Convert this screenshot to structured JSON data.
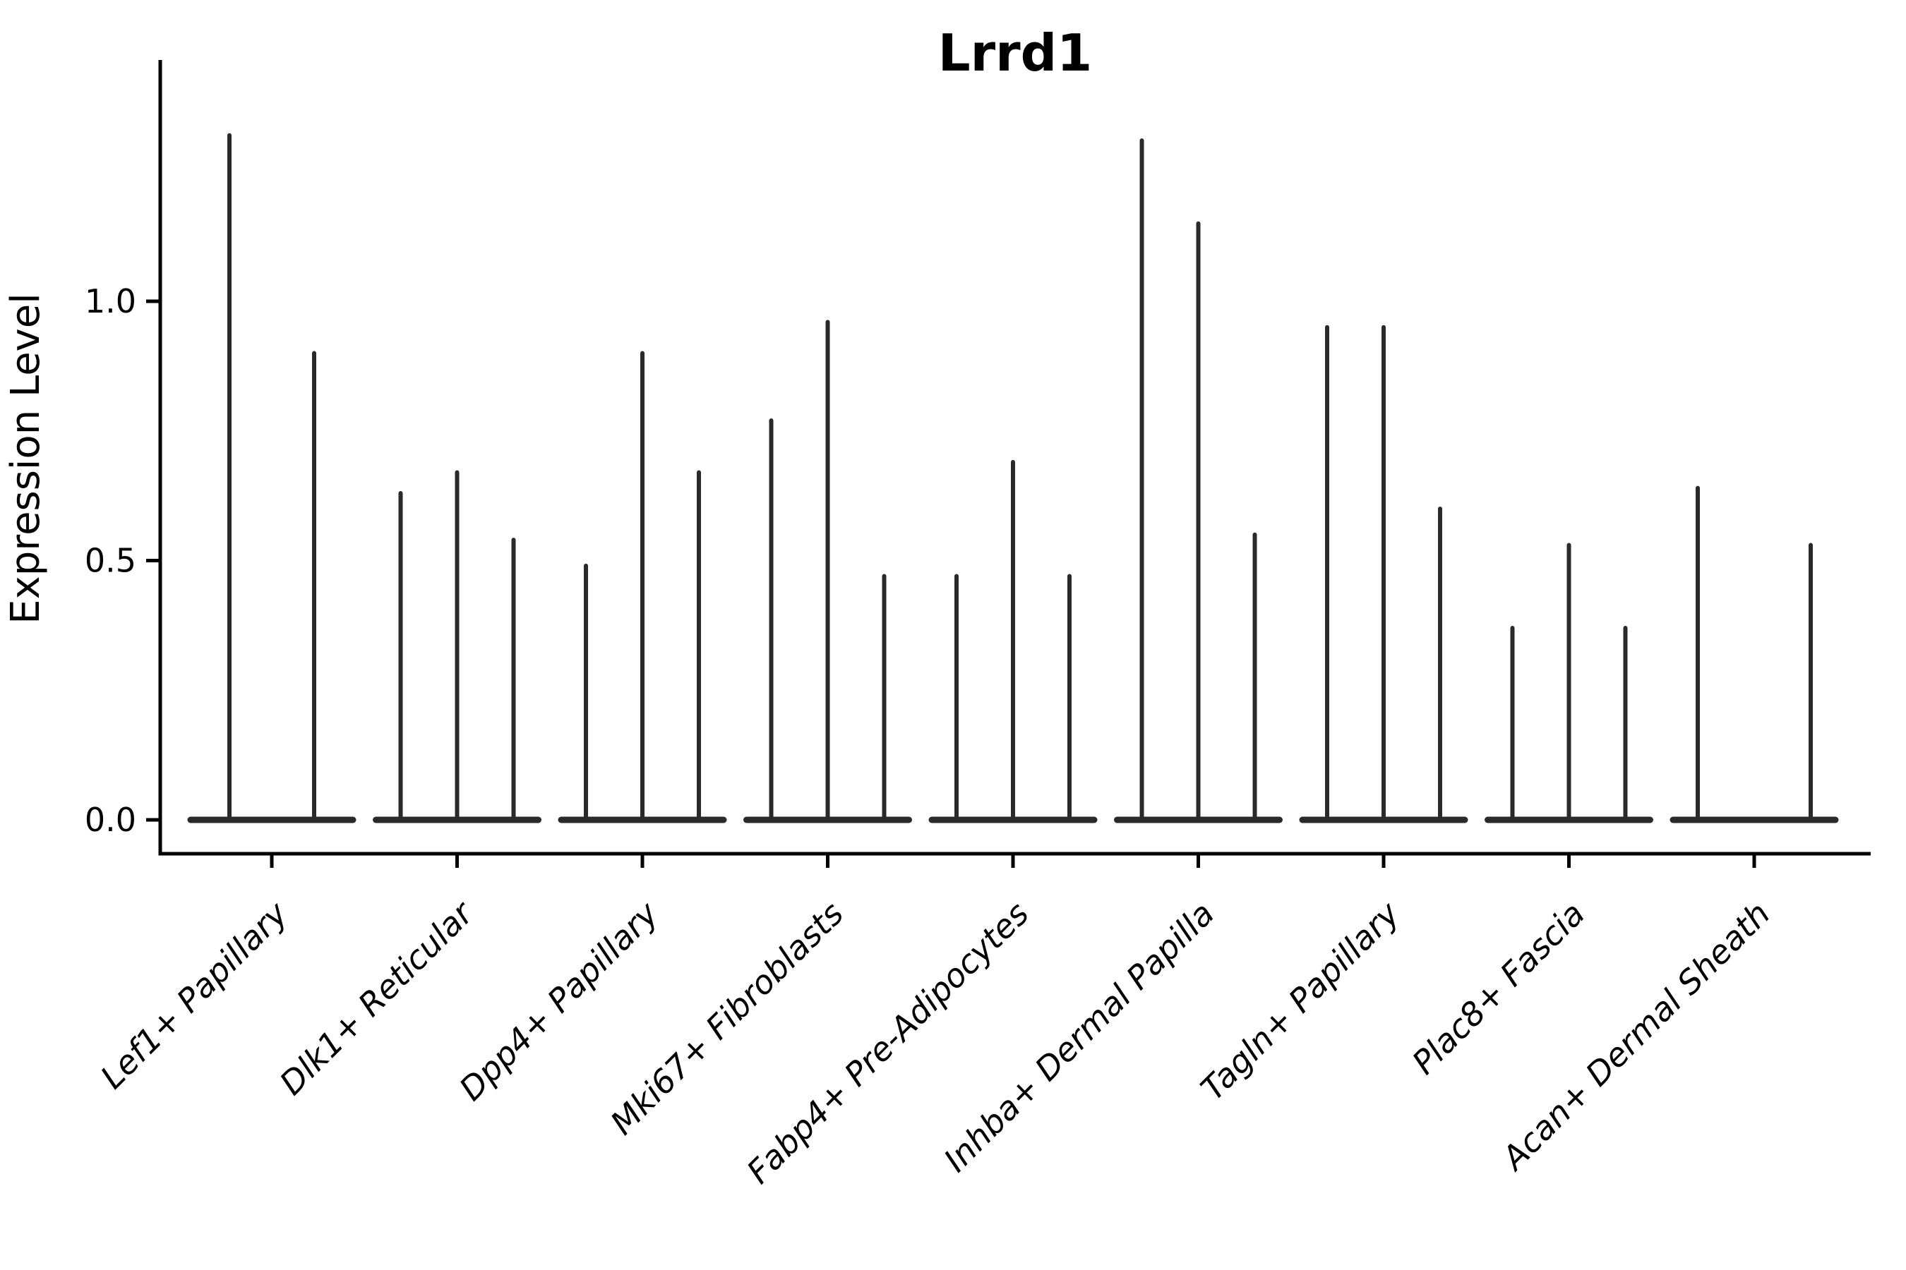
{
  "title": "Lrrd1",
  "chart_data": {
    "type": "violin",
    "title": "Lrrd1",
    "xlabel": "",
    "ylabel": "Expression Level",
    "ytick_labels": [
      "0.0",
      "0.5",
      "1.0"
    ],
    "ytick_values": [
      0.0,
      0.5,
      1.0
    ],
    "ylim": [
      -0.065,
      1.465
    ],
    "grid": false,
    "legend": "none",
    "background": "#ffffff",
    "colors": {
      "violin": "#2a2a2a",
      "axis": "#000000",
      "text": "#000000"
    },
    "categories": [
      "Lef1+ Papillary",
      "Dlk1+ Reticular",
      "Dpp4+ Papillary",
      "Mki67+ Fibroblasts",
      "Fabp4+ Pre-Adipocytes",
      "Inhba+ Dermal Papilla",
      "Tagln+ Papillary",
      "Plac8+ Fascia",
      "Acan+ Dermal Sheath"
    ],
    "groups": [
      {
        "label": "Lef1+ Papillary",
        "peaks": [
          1.32,
          0.9
        ]
      },
      {
        "label": "Dlk1+ Reticular",
        "peaks": [
          0.63,
          0.67,
          0.54
        ]
      },
      {
        "label": "Dpp4+ Papillary",
        "peaks": [
          0.49,
          0.9,
          0.67
        ]
      },
      {
        "label": "Mki67+ Fibroblasts",
        "peaks": [
          0.77,
          0.96,
          0.47
        ]
      },
      {
        "label": "Fabp4+ Pre-Adipocytes",
        "peaks": [
          0.47,
          0.69,
          0.47
        ]
      },
      {
        "label": "Inhba+ Dermal Papilla",
        "peaks": [
          1.31,
          1.15,
          0.55
        ]
      },
      {
        "label": "Tagln+ Papillary",
        "peaks": [
          0.95,
          0.95,
          0.6
        ]
      },
      {
        "label": "Plac8+ Fascia",
        "peaks": [
          0.37,
          0.53,
          0.37
        ]
      },
      {
        "label": "Acan+ Dermal Sheath",
        "peaks": [
          0.64,
          0.0,
          0.53
        ]
      }
    ]
  }
}
